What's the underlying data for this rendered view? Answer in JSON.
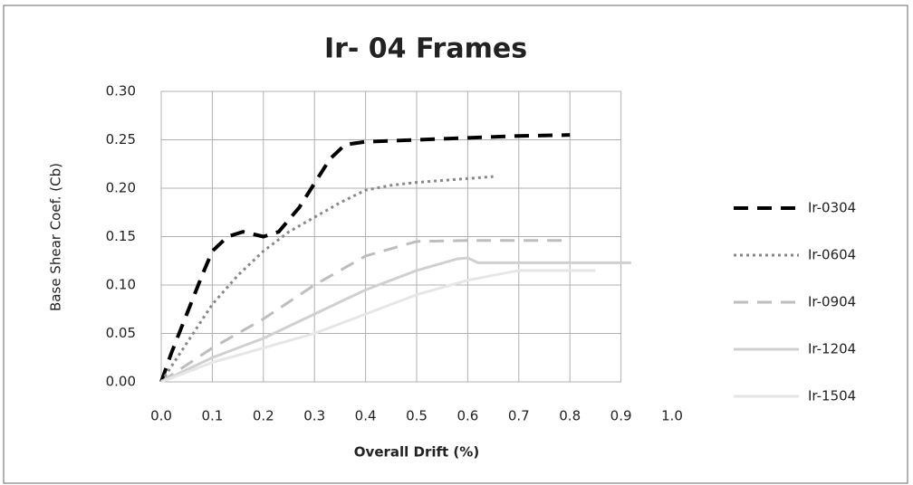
{
  "chart_data": {
    "type": "line",
    "title": "Ir- 04 Frames",
    "x_label": "Overall Drift (%)",
    "y_label": "Base Shear Coef. (Cb)",
    "xlim": [
      0,
      1
    ],
    "ylim": [
      0,
      0.3
    ],
    "xticks": [
      {
        "value": 0,
        "label": "0.0"
      },
      0.1,
      0.2,
      0.3,
      0.4,
      0.5,
      0.6,
      0.7,
      0.8,
      0.9,
      {
        "value": 1,
        "label": "1.0"
      }
    ],
    "yticks": [
      {
        "value": 0,
        "label": "0.00"
      },
      {
        "value": 0.05,
        "label": "0.05"
      },
      {
        "value": 0.1,
        "label": "0.10"
      },
      {
        "value": 0.15,
        "label": "0.15"
      },
      {
        "value": 0.2,
        "label": "0.20"
      },
      {
        "value": 0.25,
        "label": "0.25"
      },
      {
        "value": 0.3,
        "label": "0.30"
      }
    ],
    "grid": true,
    "legend": "right",
    "series": [
      {
        "name": "Ir-0304",
        "color": "#000000",
        "dash": "dashed",
        "width": 4,
        "x": [
          0,
          0.02,
          0.05,
          0.08,
          0.1,
          0.13,
          0.16,
          0.2,
          0.23,
          0.27,
          0.3,
          0.33,
          0.36,
          0.4,
          0.5,
          0.6,
          0.7,
          0.8
        ],
        "values": [
          0,
          0.03,
          0.07,
          0.11,
          0.135,
          0.15,
          0.155,
          0.15,
          0.155,
          0.18,
          0.205,
          0.23,
          0.245,
          0.248,
          0.25,
          0.252,
          0.254,
          0.255
        ]
      },
      {
        "name": "Ir-0604",
        "color": "#888888",
        "dash": "dotted",
        "width": 3,
        "x": [
          0,
          0.05,
          0.1,
          0.15,
          0.2,
          0.25,
          0.3,
          0.35,
          0.4,
          0.45,
          0.5,
          0.6,
          0.65
        ],
        "values": [
          0,
          0.04,
          0.08,
          0.11,
          0.135,
          0.155,
          0.17,
          0.185,
          0.198,
          0.203,
          0.206,
          0.21,
          0.212
        ]
      },
      {
        "name": "Ir-0904",
        "color": "#bdbdbd",
        "dash": "dashed",
        "width": 3,
        "x": [
          0,
          0.1,
          0.2,
          0.3,
          0.4,
          0.5,
          0.6,
          0.8
        ],
        "values": [
          0,
          0.035,
          0.065,
          0.1,
          0.13,
          0.145,
          0.146,
          0.146
        ]
      },
      {
        "name": "Ir-1204",
        "color": "#d0d0d0",
        "dash": "solid",
        "width": 3,
        "x": [
          0,
          0.1,
          0.2,
          0.3,
          0.4,
          0.5,
          0.58,
          0.6,
          0.62,
          0.7,
          0.8,
          0.92
        ],
        "values": [
          0,
          0.025,
          0.045,
          0.07,
          0.095,
          0.115,
          0.127,
          0.128,
          0.123,
          0.123,
          0.123,
          0.123
        ]
      },
      {
        "name": "Ir-1504",
        "color": "#e6e6e6",
        "dash": "solid",
        "width": 3,
        "x": [
          0,
          0.1,
          0.2,
          0.3,
          0.4,
          0.5,
          0.6,
          0.7,
          0.85
        ],
        "values": [
          0,
          0.02,
          0.035,
          0.05,
          0.07,
          0.09,
          0.105,
          0.115,
          0.115
        ]
      }
    ]
  }
}
